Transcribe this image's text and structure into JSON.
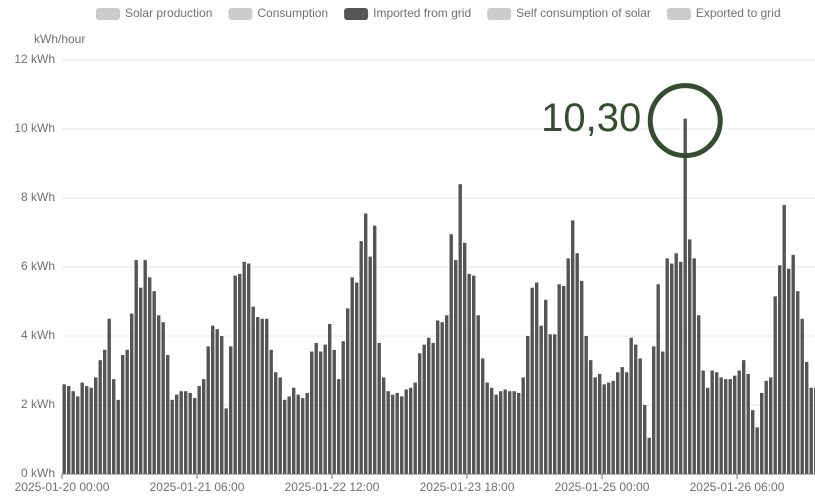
{
  "chart_data": {
    "type": "bar",
    "y_axis_label": "kWh/hour",
    "series": [
      {
        "name": "Solar production",
        "color": "#cccccc",
        "hidden": true
      },
      {
        "name": "Consumption",
        "color": "#cccccc",
        "hidden": true
      },
      {
        "name": "Imported from grid",
        "color": "#555555",
        "values": [
          2.6,
          2.55,
          2.4,
          2.25,
          2.65,
          2.55,
          2.5,
          2.8,
          3.3,
          3.6,
          4.5,
          2.75,
          2.15,
          3.45,
          3.6,
          4.65,
          6.2,
          5.4,
          6.2,
          5.7,
          5.3,
          4.6,
          4.4,
          3.45,
          2.15,
          2.3,
          2.4,
          2.4,
          2.35,
          2.2,
          2.55,
          2.75,
          3.7,
          4.3,
          4.2,
          4.0,
          1.9,
          3.7,
          5.75,
          5.8,
          6.15,
          6.1,
          4.85,
          4.55,
          4.5,
          4.5,
          3.6,
          2.95,
          2.8,
          2.15,
          2.25,
          2.5,
          2.3,
          2.2,
          2.35,
          3.55,
          3.8,
          3.55,
          3.75,
          4.35,
          3.6,
          2.75,
          3.85,
          4.8,
          5.7,
          5.55,
          6.75,
          7.55,
          6.3,
          7.2,
          3.8,
          2.8,
          2.4,
          2.3,
          2.35,
          2.25,
          2.45,
          2.5,
          2.65,
          3.5,
          3.75,
          3.95,
          3.8,
          4.45,
          4.4,
          4.6,
          6.95,
          6.2,
          8.4,
          6.7,
          5.8,
          5.75,
          4.6,
          3.35,
          2.65,
          2.5,
          2.3,
          2.4,
          2.45,
          2.4,
          2.4,
          2.35,
          2.8,
          4.0,
          5.4,
          5.55,
          4.3,
          5.05,
          4.05,
          4.05,
          5.5,
          5.45,
          6.25,
          7.35,
          6.4,
          5.6,
          4.0,
          3.3,
          2.8,
          2.9,
          2.6,
          2.65,
          2.7,
          2.95,
          3.1,
          2.95,
          3.95,
          3.75,
          3.35,
          2.0,
          1.05,
          3.7,
          5.5,
          3.55,
          6.25,
          6.1,
          6.4,
          6.15,
          10.3,
          6.8,
          6.25,
          4.6,
          3.0,
          2.5,
          3.0,
          2.95,
          2.8,
          2.75,
          2.75,
          2.85,
          3.0,
          3.3,
          2.9,
          1.85,
          1.35,
          2.35,
          2.7,
          2.8,
          5.15,
          6.05,
          7.8,
          5.95,
          6.35,
          5.3,
          4.5,
          3.25,
          2.5,
          2.5
        ]
      },
      {
        "name": "Self consumption of solar",
        "color": "#cccccc",
        "hidden": true
      },
      {
        "name": "Exported to grid",
        "color": "#cccccc",
        "hidden": true
      }
    ],
    "categories": [
      "2025-01-20  00:00",
      null,
      null,
      null,
      null,
      null,
      null,
      null,
      null,
      null,
      null,
      null,
      null,
      null,
      null,
      null,
      null,
      null,
      null,
      null,
      null,
      null,
      null,
      null,
      null,
      null,
      null,
      null,
      null,
      null,
      "2025-01-21  06:00",
      null,
      null,
      null,
      null,
      null,
      null,
      null,
      null,
      null,
      null,
      null,
      null,
      null,
      null,
      null,
      null,
      null,
      null,
      null,
      null,
      null,
      null,
      null,
      null,
      null,
      null,
      null,
      null,
      null,
      "2025-01-22  12:00",
      null,
      null,
      null,
      null,
      null,
      null,
      null,
      null,
      null,
      null,
      null,
      null,
      null,
      null,
      null,
      null,
      null,
      null,
      null,
      null,
      null,
      null,
      null,
      null,
      null,
      null,
      null,
      null,
      null,
      "2025-01-23  18:00",
      null,
      null,
      null,
      null,
      null,
      null,
      null,
      null,
      null,
      null,
      null,
      null,
      null,
      null,
      null,
      null,
      null,
      null,
      null,
      null,
      null,
      null,
      null,
      null,
      null,
      null,
      null,
      null,
      null,
      "2025-01-25  00:00",
      null,
      null,
      null,
      null,
      null,
      null,
      null,
      null,
      null,
      null,
      null,
      null,
      null,
      null,
      null,
      null,
      null,
      null,
      null,
      null,
      null,
      null,
      null,
      null,
      null,
      null,
      null,
      null,
      null,
      "2025-01-26  06:00",
      null,
      null,
      null,
      null,
      null,
      null,
      null,
      null,
      null,
      null,
      null,
      null,
      null,
      null,
      null,
      null,
      null
    ],
    "ylim": [
      0,
      12
    ],
    "yticks": [
      {
        "value": 0,
        "label": "0 kWh"
      },
      {
        "value": 2,
        "label": "2 kWh"
      },
      {
        "value": 4,
        "label": "4 kWh"
      },
      {
        "value": 6,
        "label": "6 kWh"
      },
      {
        "value": 8,
        "label": "8 kWh"
      },
      {
        "value": 10,
        "label": "10 kWh"
      },
      {
        "value": 12,
        "label": "12 kWh"
      }
    ],
    "grid": true,
    "legend": "top",
    "annotation": {
      "text": "10,30",
      "series": 2,
      "index": 138,
      "color": "#344d2e"
    }
  }
}
